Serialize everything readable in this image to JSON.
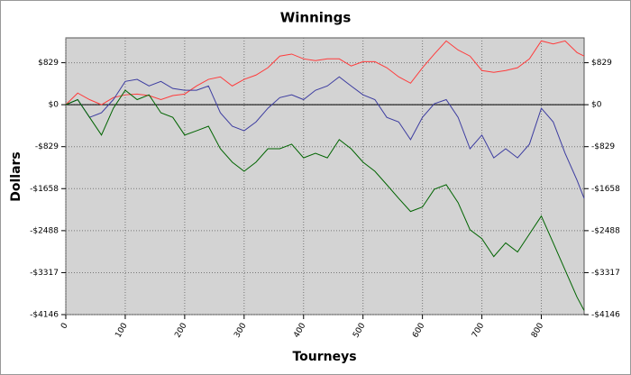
{
  "chart_data": {
    "type": "line",
    "title": "Winnings",
    "x_label": "Tourneys",
    "y_label": "Dollars",
    "x": [
      0,
      20,
      40,
      60,
      80,
      100,
      120,
      140,
      160,
      180,
      200,
      220,
      240,
      260,
      280,
      300,
      320,
      340,
      360,
      380,
      400,
      420,
      440,
      460,
      480,
      500,
      520,
      540,
      560,
      580,
      600,
      620,
      640,
      660,
      680,
      700,
      720,
      740,
      760,
      780,
      800,
      820,
      840,
      860,
      872
    ],
    "series": [
      {
        "color": "#ff3b3b",
        "values": [
          0,
          230,
          100,
          0,
          140,
          195,
          210,
          180,
          100,
          180,
          210,
          370,
          500,
          550,
          370,
          500,
          585,
          730,
          960,
          1000,
          905,
          870,
          905,
          905,
          765,
          850,
          850,
          730,
          550,
          425,
          730,
          1000,
          1260,
          1080,
          960,
          675,
          640,
          675,
          730,
          905,
          1260,
          1200,
          1260,
          1030,
          960
        ]
      },
      {
        "color": "#3c3ca0",
        "values": [
          0,
          100,
          -250,
          -160,
          100,
          460,
          500,
          370,
          460,
          320,
          285,
          285,
          370,
          -160,
          -425,
          -515,
          -340,
          -70,
          140,
          195,
          100,
          285,
          370,
          550,
          370,
          195,
          100,
          -250,
          -340,
          -690,
          -250,
          20,
          100,
          -250,
          -870,
          -600,
          -1050,
          -870,
          -1050,
          -780,
          -70,
          -340,
          -960,
          -1490,
          -1850
        ]
      },
      {
        "color": "#006400",
        "values": [
          0,
          100,
          -250,
          -600,
          -70,
          285,
          100,
          195,
          -160,
          -250,
          -600,
          -515,
          -425,
          -870,
          -1135,
          -1315,
          -1135,
          -870,
          -870,
          -780,
          -1050,
          -960,
          -1050,
          -690,
          -870,
          -1135,
          -1315,
          -1580,
          -1850,
          -2110,
          -2020,
          -1670,
          -1580,
          -1935,
          -2470,
          -2645,
          -3000,
          -2730,
          -2910,
          -2555,
          -2200,
          -2730,
          -3265,
          -3800,
          -4065
        ]
      }
    ],
    "xlim": [
      0,
      872
    ],
    "xticks": [
      0,
      100,
      200,
      300,
      400,
      500,
      600,
      700,
      800
    ],
    "ylim": [
      -4146,
      1320
    ],
    "yticks": [
      {
        "value": 829,
        "label": "$829"
      },
      {
        "value": 0,
        "label": "$0"
      },
      {
        "value": -829,
        "label": "-$829"
      },
      {
        "value": -1658,
        "label": "-$1658"
      },
      {
        "value": -2488,
        "label": "-$2488"
      },
      {
        "value": -3317,
        "label": "-$3317"
      },
      {
        "value": -4146,
        "label": "-$4146"
      }
    ],
    "grid": true
  }
}
